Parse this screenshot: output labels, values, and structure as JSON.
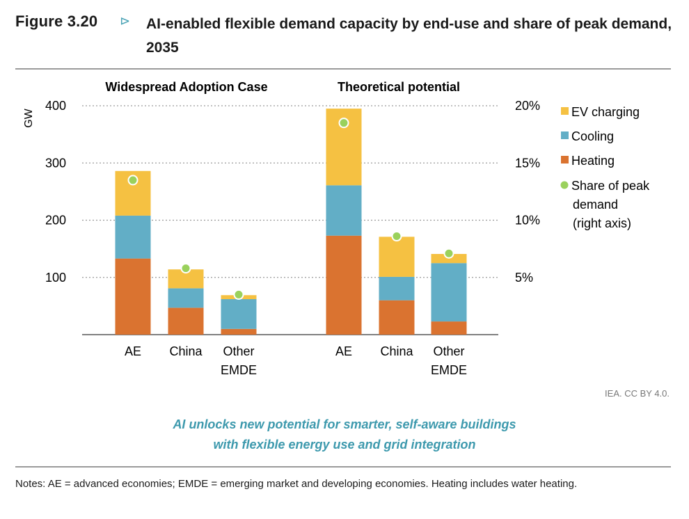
{
  "figure": {
    "number": "Figure 3.20",
    "arrow": "⊳",
    "title": "AI-enabled flexible demand capacity by end-use and share of peak demand, 2035"
  },
  "credit": "IEA. CC BY 4.0.",
  "caption": {
    "line1": "AI unlocks new potential for smarter, self-aware buildings",
    "line2": "with flexible energy use and grid integration"
  },
  "notes": "Notes: AE = advanced economies; EMDE = emerging market and developing economies. Heating includes water heating.",
  "colors": {
    "ev": "#f5c142",
    "cooling": "#62aec6",
    "heating": "#da7330",
    "share": "#9ad15c",
    "grid": "#9a9a9a"
  },
  "chart_data": {
    "type": "bar",
    "stacked": true,
    "ylabel": "GW",
    "ylim": [
      0,
      400
    ],
    "yticks": [
      100,
      200,
      300,
      400
    ],
    "y2label": "",
    "y2lim": [
      0,
      20
    ],
    "y2ticks": [
      "5%",
      "10%",
      "15%",
      "20%"
    ],
    "legend": [
      {
        "key": "ev",
        "label": "EV charging",
        "kind": "square"
      },
      {
        "key": "cooling",
        "label": "Cooling",
        "kind": "square"
      },
      {
        "key": "heating",
        "label": "Heating",
        "kind": "square"
      },
      {
        "key": "share",
        "label": "Share of peak demand (right axis)",
        "lines": [
          "Share of peak",
          "demand",
          "(right axis)"
        ],
        "kind": "dot"
      }
    ],
    "groups": [
      {
        "title": "Widespread Adoption Case",
        "categories": [
          {
            "label": [
              "AE"
            ],
            "heating": 133,
            "cooling": 75,
            "ev": 78,
            "share": 13.5
          },
          {
            "label": [
              "China"
            ],
            "heating": 47,
            "cooling": 34,
            "ev": 33,
            "share": 5.8
          },
          {
            "label": [
              "Other",
              "EMDE"
            ],
            "heating": 10,
            "cooling": 52,
            "ev": 7,
            "share": 3.5
          }
        ]
      },
      {
        "title": "Theoretical potential",
        "categories": [
          {
            "label": [
              "AE"
            ],
            "heating": 173,
            "cooling": 88,
            "ev": 134,
            "share": 18.5
          },
          {
            "label": [
              "China"
            ],
            "heating": 60,
            "cooling": 41,
            "ev": 70,
            "share": 8.6
          },
          {
            "label": [
              "Other",
              "EMDE"
            ],
            "heating": 23,
            "cooling": 102,
            "ev": 16,
            "share": 7.1
          }
        ]
      }
    ]
  }
}
